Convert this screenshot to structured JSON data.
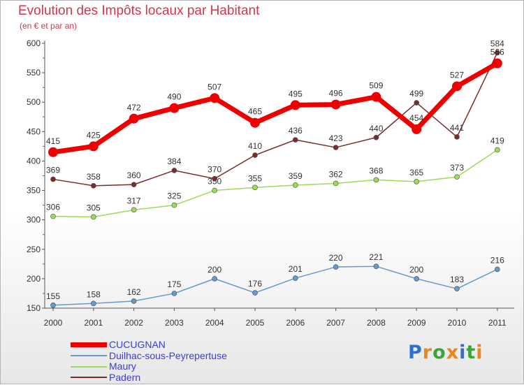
{
  "chart_data": {
    "type": "line",
    "title": "Evolution des Impôts locaux par Habitant",
    "subtitle": "(en € et par an)",
    "xlabel": "",
    "ylabel": "",
    "x": [
      "2000",
      "2001",
      "2002",
      "2003",
      "2004",
      "2005",
      "2006",
      "2007",
      "2008",
      "2009",
      "2010",
      "2011"
    ],
    "ylim": [
      150,
      600
    ],
    "yticks": [
      150,
      200,
      250,
      300,
      350,
      400,
      450,
      500,
      550,
      600
    ],
    "grid": false,
    "legend_placement": "bottom-left",
    "series": [
      {
        "name": "CUCUGNAN",
        "color": "#ee0000",
        "values": [
          415,
          425,
          472,
          490,
          507,
          465,
          495,
          496,
          509,
          454,
          527,
          566
        ]
      },
      {
        "name": "Duilhac-sous-Peyrepertuse",
        "color": "#6699cc",
        "values": [
          155,
          158,
          162,
          175,
          200,
          176,
          201,
          220,
          221,
          200,
          183,
          216
        ]
      },
      {
        "name": "Maury",
        "color": "#99dd55",
        "values": [
          306,
          305,
          317,
          325,
          350,
          355,
          359,
          362,
          368,
          365,
          373,
          419
        ]
      },
      {
        "name": "Padern",
        "color": "#7a2b2b",
        "values": [
          369,
          358,
          360,
          384,
          370,
          410,
          436,
          423,
          440,
          499,
          441,
          584
        ]
      }
    ]
  },
  "logo": {
    "letters": [
      "P",
      "r",
      "o",
      "x",
      "i",
      "t",
      "i"
    ],
    "colors": [
      "#2f6fcf",
      "#e8871e",
      "#3aa63a",
      "#e8871e",
      "#2f6fcf",
      "#3aa63a",
      "#e8871e"
    ]
  }
}
